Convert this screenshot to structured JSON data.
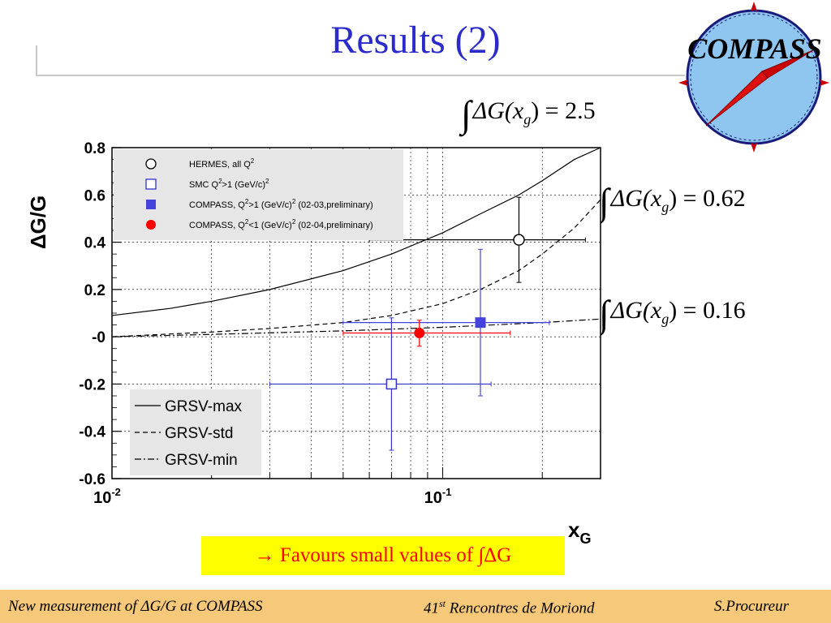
{
  "slide": {
    "title": "Results (2)",
    "banner": "→ Favours small values of ∫ΔG"
  },
  "logo": {
    "text": "COMPASS"
  },
  "formulas": [
    {
      "lhs": "ΔG(x",
      "sub": "g",
      "rhs": ") = 2.5"
    },
    {
      "lhs": "ΔG(x",
      "sub": "g",
      "rhs": ") = 0.62"
    },
    {
      "lhs": "ΔG(x",
      "sub": "g",
      "rhs": ") = 0.16"
    }
  ],
  "chart_data": {
    "type": "scatter",
    "ylabel": "ΔG/G",
    "xlabel": "x",
    "xlabel_sub": "G",
    "x_scale": "log",
    "xlim": [
      0.01,
      0.3
    ],
    "ylim": [
      -0.6,
      0.8
    ],
    "y_ticks": [
      "0.8",
      "0.6",
      "0.4",
      "0.2",
      "-0",
      "-0.2",
      "-0.4",
      "-0.6"
    ],
    "x_ticks": [
      {
        "base": "10",
        "exp": "-2"
      },
      {
        "base": "10",
        "exp": "-1"
      }
    ],
    "grid": true,
    "points": [
      {
        "name": "HERMES, all Q",
        "name_sup": "2",
        "marker": "open-circle",
        "color": "#000000",
        "x": 0.17,
        "y": 0.41,
        "x_low": 0.06,
        "x_high": 0.27,
        "y_low": 0.23,
        "y_high": 0.59
      },
      {
        "name": "SMC Q",
        "name_sup": "2",
        "name_tail": ">1 (GeV/c)",
        "name_tail_sup": "2",
        "marker": "open-square",
        "color": "#3333cc",
        "x": 0.07,
        "y": -0.2,
        "x_low": 0.03,
        "x_high": 0.14,
        "y_low": -0.48,
        "y_high": 0.08
      },
      {
        "name": "COMPASS, Q",
        "name_sup": "2",
        "name_tail": ">1 (GeV/c)",
        "name_tail_sup": "2",
        "name_end": " (02-03,preliminary)",
        "marker": "filled-square",
        "color": "#4444dd",
        "x": 0.13,
        "y": 0.06,
        "x_low": 0.05,
        "x_high": 0.21,
        "y_low": -0.25,
        "y_high": 0.37
      },
      {
        "name": "COMPASS, Q",
        "name_sup": "2",
        "name_tail": "<1 (GeV/c)",
        "name_tail_sup": "2",
        "name_end": " (02-04,preliminary)",
        "marker": "filled-circle",
        "color": "#ff0000",
        "x": 0.085,
        "y": 0.016,
        "x_low": 0.05,
        "x_high": 0.16,
        "y_low": -0.04,
        "y_high": 0.07
      }
    ],
    "curves": [
      {
        "name": "GRSV-max",
        "style": "solid",
        "x": [
          0.01,
          0.015,
          0.02,
          0.03,
          0.04,
          0.05,
          0.07,
          0.1,
          0.13,
          0.17,
          0.2,
          0.25,
          0.3
        ],
        "y": [
          0.09,
          0.12,
          0.15,
          0.2,
          0.245,
          0.28,
          0.35,
          0.44,
          0.52,
          0.6,
          0.66,
          0.75,
          0.83
        ]
      },
      {
        "name": "GRSV-std",
        "style": "dashed",
        "x": [
          0.01,
          0.02,
          0.03,
          0.05,
          0.07,
          0.1,
          0.13,
          0.17,
          0.2,
          0.25,
          0.3
        ],
        "y": [
          0.0,
          0.02,
          0.035,
          0.06,
          0.09,
          0.14,
          0.2,
          0.28,
          0.35,
          0.46,
          0.58
        ]
      },
      {
        "name": "GRSV-min",
        "style": "dashdot",
        "x": [
          0.01,
          0.02,
          0.05,
          0.1,
          0.2,
          0.3
        ],
        "y": [
          0.0,
          0.01,
          0.025,
          0.04,
          0.06,
          0.075
        ]
      }
    ],
    "legend_curves": [
      "GRSV-max",
      "GRSV-std",
      "GRSV-min"
    ],
    "colors": {
      "axis_bg": "#ffffff",
      "legend_bg": "#e6e6e6",
      "grid": "#000000"
    }
  },
  "footer": {
    "left": "New measurement of ΔG/G at COMPASS",
    "center": "41",
    "center_sup": "st",
    "center_tail": " Rencontres de Moriond",
    "right": "S.Procureur"
  }
}
